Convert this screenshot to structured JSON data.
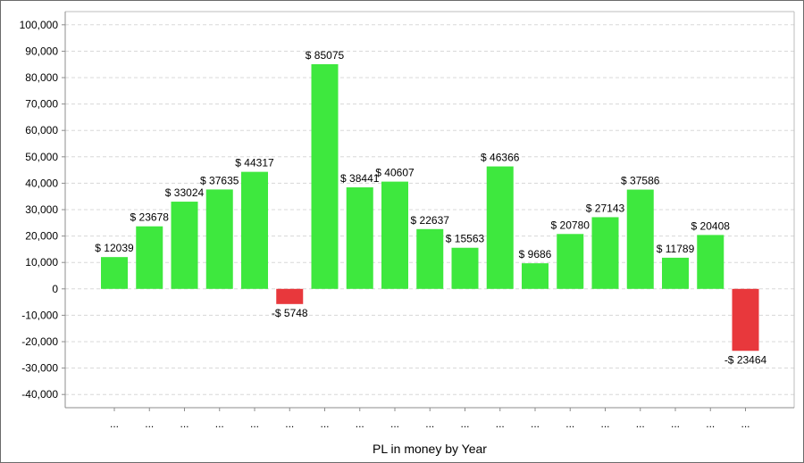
{
  "chart_data": {
    "type": "bar",
    "title": "",
    "xlabel": "PL in money by Year",
    "ylabel": "",
    "categories": [
      "...",
      "...",
      "...",
      "...",
      "...",
      "...",
      "...",
      "...",
      "...",
      "...",
      "...",
      "...",
      "...",
      "...",
      "...",
      "...",
      "...",
      "...",
      "..."
    ],
    "values": [
      12039,
      23678,
      33024,
      37635,
      44317,
      -5748,
      85075,
      38441,
      40607,
      22637,
      15563,
      46366,
      9686,
      20780,
      27143,
      37586,
      11789,
      20408,
      -23464
    ],
    "data_labels": [
      "$ 12039",
      "$ 23678",
      "$ 33024",
      "$ 37635",
      "$ 44317",
      "-$ 5748",
      "$ 85075",
      "$ 38441",
      "$ 40607",
      "$ 22637",
      "$ 15563",
      "$ 46366",
      "$ 9686",
      "$ 20780",
      "$ 27143",
      "$ 37586",
      "$ 11789",
      "$ 20408",
      "-$ 23464"
    ],
    "ylim": [
      -45000,
      105000
    ],
    "yticks": [
      -40000,
      -30000,
      -20000,
      -10000,
      0,
      10000,
      20000,
      30000,
      40000,
      50000,
      60000,
      70000,
      80000,
      90000,
      100000
    ],
    "ytick_labels": [
      "-40,000",
      "-30,000",
      "-20,000",
      "-10,000",
      "0",
      "10,000",
      "20,000",
      "30,000",
      "40,000",
      "50,000",
      "60,000",
      "70,000",
      "80,000",
      "90,000",
      "100,000"
    ],
    "grid": true,
    "legend": "none",
    "colors": {
      "positive": "#3ee83e",
      "negative": "#e8383c",
      "grid": "#d8d8d8",
      "axis": "#8c8c8c"
    }
  }
}
